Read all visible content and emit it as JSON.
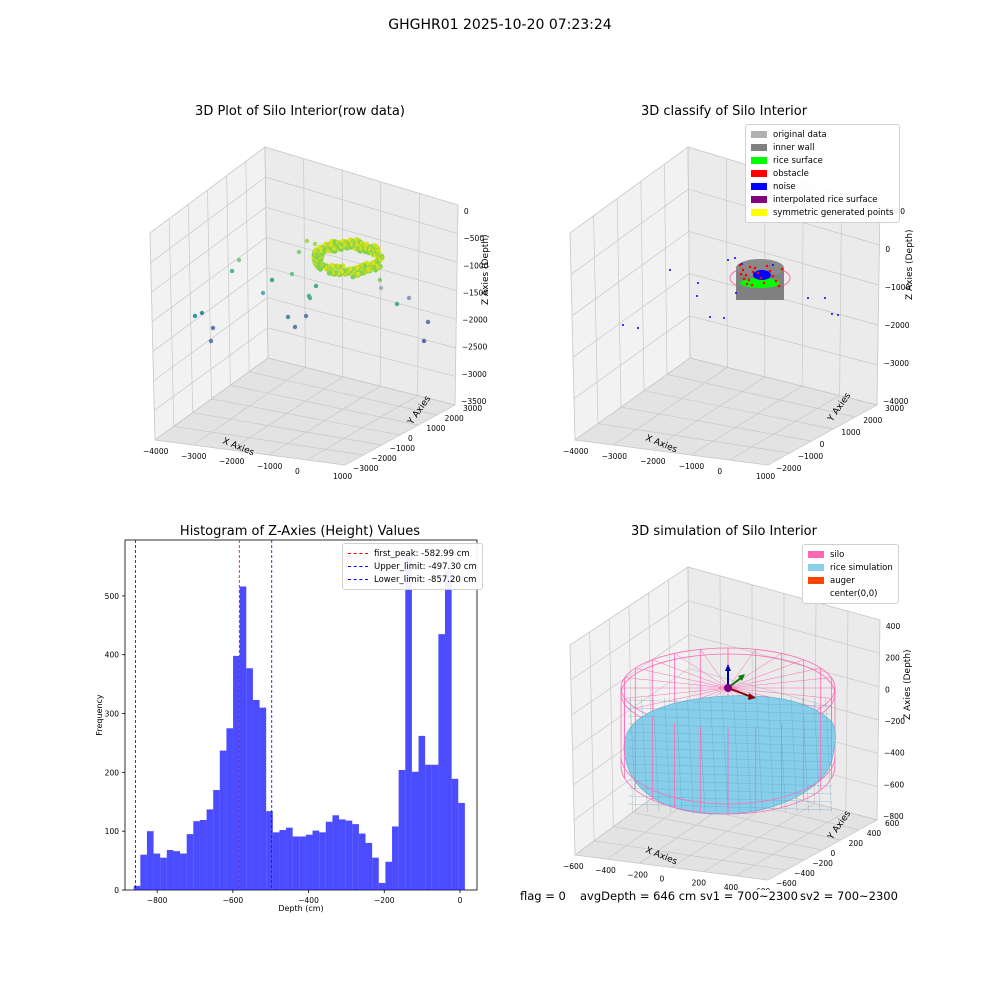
{
  "figure": {
    "suptitle": "GHGHR01 2025-10-20 07:23:24"
  },
  "panels": {
    "raw": {
      "title": "3D Plot of Silo Interior(row data)",
      "xlabel": "X Axies",
      "ylabel": "Y Axies",
      "zlabel": "Z Axies (Depth)",
      "xticks": [
        "−4000",
        "−3000",
        "−2000",
        "−1000",
        "0",
        "1000"
      ],
      "yticks": [
        "−3000",
        "−2000",
        "−1000",
        "0",
        "1000",
        "2000",
        "3000"
      ],
      "zticks": [
        "0",
        "−500",
        "−1000",
        "−1500",
        "−2000",
        "−2500",
        "−3000",
        "−3500"
      ]
    },
    "classify": {
      "title": "3D classify of Silo Interior",
      "xlabel": "X Axies",
      "ylabel": "Y Axies",
      "zlabel": "Z Axies (Depth)",
      "xticks": [
        "−4000",
        "−3000",
        "−2000",
        "−1000",
        "0",
        "1000"
      ],
      "yticks": [
        "−2000",
        "−1000",
        "0",
        "1000",
        "2000",
        "3000"
      ],
      "zticks": [
        "1000",
        "0",
        "−1000",
        "−2000",
        "−3000",
        "−4000"
      ],
      "legend": [
        {
          "label": "original data",
          "color": "#b0b0b0"
        },
        {
          "label": "inner wall",
          "color": "#808080"
        },
        {
          "label": "rice surface",
          "color": "#00ff00"
        },
        {
          "label": "obstacle",
          "color": "#ff0000"
        },
        {
          "label": "noise",
          "color": "#0000ff"
        },
        {
          "label": "interpolated rice surface",
          "color": "#800080"
        },
        {
          "label": "symmetric generated points",
          "color": "#ffff00"
        }
      ]
    },
    "simulation": {
      "title": "3D simulation of Silo Interior",
      "xlabel": "X Axies",
      "ylabel": "Y Axies",
      "zlabel": "Z Axies (Depth)",
      "xticks": [
        "−600",
        "−400",
        "−200",
        "0",
        "200",
        "400",
        "600"
      ],
      "yticks": [
        "−600",
        "−400",
        "−200",
        "0",
        "200",
        "400",
        "600"
      ],
      "zticks": [
        "400",
        "200",
        "0",
        "−200",
        "−400",
        "−600",
        "−800"
      ],
      "legend": [
        {
          "label": "silo",
          "color": "#ff69b4"
        },
        {
          "label": "rice simulation",
          "color": "#87ceeb"
        },
        {
          "label": "auger",
          "color": "#ff4500"
        },
        {
          "label": "center(0,0)",
          "color": ""
        }
      ]
    }
  },
  "status": {
    "flag": "flag = 0",
    "avg_depth": "avgDepth = 646 cm",
    "sv1": "sv1 = 700~2300",
    "sv2": "sv2 = 700~2300"
  },
  "chart_data": {
    "type": "bar",
    "title": "Histogram of Z-Axies (Height) Values",
    "xlabel": "Depth (cm)",
    "ylabel": "Frequency",
    "xlim": [
      -885,
      45
    ],
    "ylim": [
      0,
      595
    ],
    "bin_width": 17.5,
    "bin_start": -862,
    "bar_color": "#0000ff",
    "bar_alpha": 0.7,
    "xticks": [
      -800,
      -600,
      -400,
      -200,
      0
    ],
    "xtick_labels": [
      "−800",
      "−600",
      "−400",
      "−200",
      "0"
    ],
    "yticks": [
      0,
      100,
      200,
      300,
      400,
      500
    ],
    "values": [
      7,
      60,
      100,
      62,
      55,
      68,
      66,
      62,
      95,
      117,
      119,
      137,
      170,
      237,
      275,
      398,
      516,
      377,
      323,
      310,
      134,
      98,
      102,
      106,
      91,
      91,
      94,
      101,
      98,
      116,
      127,
      120,
      118,
      112,
      96,
      80,
      55,
      12,
      48,
      108,
      204,
      566,
      201,
      262,
      213,
      213,
      435,
      543,
      189,
      148
    ],
    "vlines": [
      {
        "label": "first_peak: -582.99 cm",
        "x": -582.99,
        "color": "#ff0000"
      },
      {
        "label": "Upper_limit: -497.30 cm",
        "x": -497.3,
        "color": "#0000ff"
      },
      {
        "label": "Lower_limit: -857.20 cm",
        "x": -857.2,
        "color": "#0000ff"
      }
    ]
  }
}
